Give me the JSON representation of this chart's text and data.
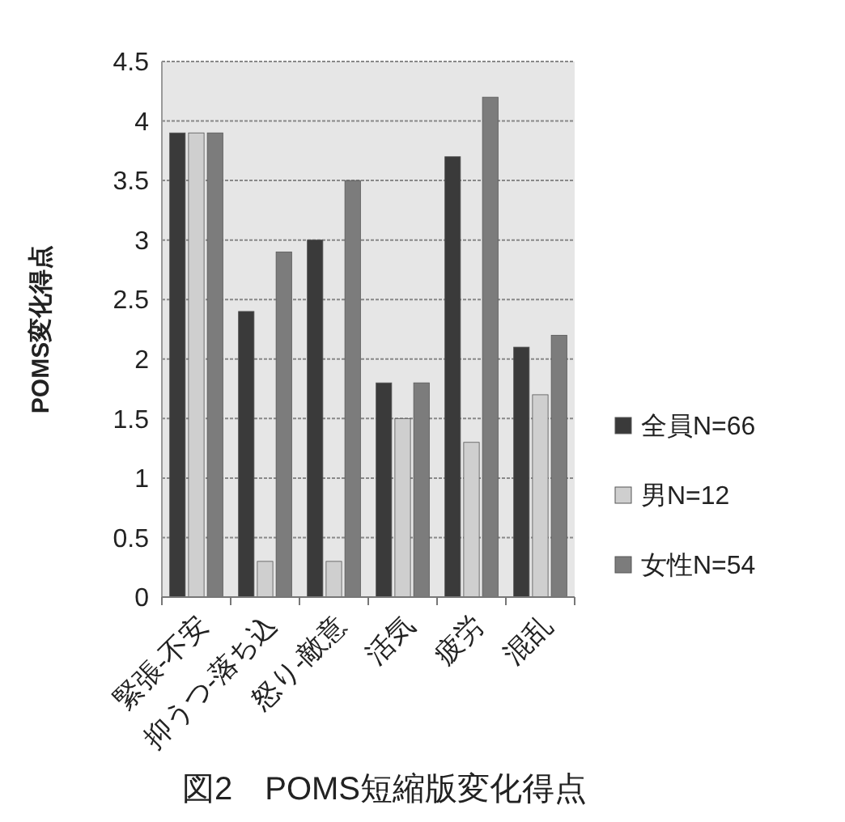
{
  "chart_data": {
    "type": "bar",
    "title": "図2　POMS短縮版変化得点",
    "ylabel": "POMS変化得点",
    "categories": [
      "緊張-不安",
      "抑うつ-落ち込",
      "怒り-敵意",
      "活気",
      "疲労",
      "混乱"
    ],
    "series": [
      {
        "name": "全員N=66",
        "color": "#3a3a3a",
        "values": [
          3.9,
          2.4,
          3.0,
          1.8,
          3.7,
          2.1
        ]
      },
      {
        "name": "男N=12",
        "color": "#cfcfcf",
        "values": [
          3.9,
          0.3,
          0.3,
          1.5,
          1.3,
          1.7
        ]
      },
      {
        "name": "女性N=54",
        "color": "#7c7c7c",
        "values": [
          3.9,
          2.9,
          3.5,
          1.8,
          4.2,
          2.2
        ]
      }
    ],
    "ylim": [
      0,
      4.5
    ],
    "yticks": [
      0,
      0.5,
      1,
      1.5,
      2,
      2.5,
      3,
      3.5,
      4,
      4.5
    ],
    "grid": "y",
    "legend": "right"
  }
}
